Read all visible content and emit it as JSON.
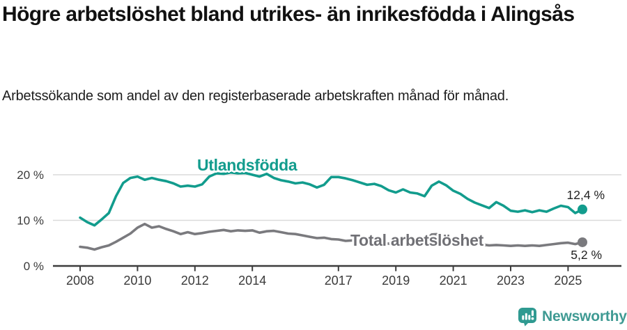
{
  "header": {
    "title": "Högre arbetslöshet bland utrikes- än inrikesfödda i Alingsås",
    "subtitle": "Arbetssökande som andel av den registerbaserade arbetskraften månad för månad."
  },
  "chart_data": {
    "type": "line",
    "x_unit": "year",
    "y_unit": "%",
    "x_start": 2008.0,
    "x_step": 0.25,
    "xlim": [
      2008.0,
      2025.5
    ],
    "ylim": [
      0,
      22
    ],
    "grid": "horizontal",
    "grid_color": "#dadada",
    "axis_color": "#3c3c3c",
    "axis_text_color": "#3a3a3a",
    "yticks": [
      {
        "value": 0,
        "label": "0 %"
      },
      {
        "value": 10,
        "label": "10 %"
      },
      {
        "value": 20,
        "label": "20 %"
      }
    ],
    "xticks": [
      2008,
      2010,
      2012,
      2014,
      2017,
      2019,
      2021,
      2023,
      2025
    ],
    "series": [
      {
        "name": "Utlandsfödda",
        "color": "#129c8d",
        "end_label": "12,4 %",
        "end_value": 12.4,
        "values": [
          10.6,
          9.6,
          8.9,
          10.2,
          11.6,
          15.3,
          18.2,
          19.3,
          19.6,
          18.9,
          19.3,
          18.9,
          18.6,
          18.1,
          17.4,
          17.6,
          17.4,
          17.9,
          19.6,
          20.3,
          20.2,
          20.5,
          20.3,
          20.4,
          20.0,
          19.6,
          20.2,
          19.3,
          18.8,
          18.5,
          18.1,
          18.3,
          17.9,
          17.2,
          17.8,
          19.5,
          19.5,
          19.2,
          18.8,
          18.3,
          17.8,
          18.0,
          17.5,
          16.6,
          16.1,
          16.8,
          16.1,
          15.9,
          15.3,
          17.6,
          18.5,
          17.7,
          16.5,
          15.8,
          14.7,
          13.9,
          13.3,
          12.7,
          14.0,
          13.2,
          12.1,
          11.9,
          12.2,
          11.8,
          12.2,
          11.9,
          12.6,
          13.2,
          12.9,
          11.6,
          12.4
        ]
      },
      {
        "name": "Total arbetslöshet",
        "color": "#7a7a7e",
        "end_label": "5,2 %",
        "end_value": 5.2,
        "values": [
          4.2,
          4.0,
          3.6,
          4.1,
          4.5,
          5.3,
          6.2,
          7.1,
          8.4,
          9.2,
          8.4,
          8.7,
          8.1,
          7.6,
          7.0,
          7.4,
          7.0,
          7.2,
          7.5,
          7.7,
          7.9,
          7.6,
          7.8,
          7.7,
          7.8,
          7.3,
          7.6,
          7.7,
          7.4,
          7.1,
          7.0,
          6.7,
          6.4,
          6.1,
          6.2,
          5.9,
          5.8,
          5.5,
          5.6,
          5.4,
          5.2,
          5.1,
          5.0,
          4.9,
          4.9,
          4.8,
          4.9,
          5.0,
          5.4,
          6.9,
          7.0,
          6.3,
          5.8,
          5.4,
          5.1,
          4.9,
          4.7,
          4.5,
          4.6,
          4.5,
          4.4,
          4.5,
          4.4,
          4.5,
          4.4,
          4.6,
          4.8,
          5.0,
          5.1,
          4.8,
          5.2
        ]
      }
    ]
  },
  "footer": {
    "brand": "Newsworthy",
    "brand_color": "#3f9a93"
  }
}
